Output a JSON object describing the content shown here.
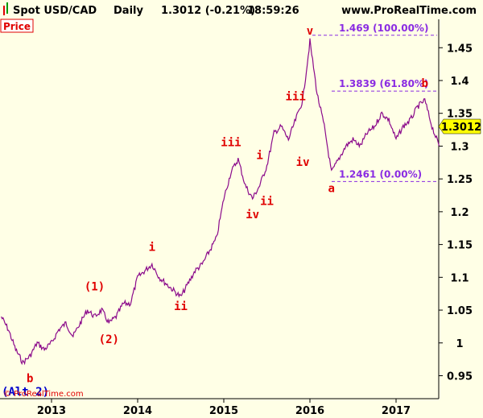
{
  "header": {
    "instrument": "Spot USD/CAD",
    "period": "Daily",
    "quote": "1.3012 (-0.21%)",
    "time": "18:59:26",
    "site": "www.ProRealTime.com"
  },
  "panel_label": "Price",
  "copyright": "© ProRealTime.com",
  "colors": {
    "background": "#ffffe6",
    "price_line": "#8b0a8b",
    "wave_label": "#e00000",
    "fib": "#8a2be2",
    "alt_label": "#0000cc",
    "last_price_box": "#ffff00"
  },
  "chart_data": {
    "type": "line",
    "title": "Spot USD/CAD Daily",
    "xlabel": "",
    "ylabel": "",
    "x_ticks": [
      "2013",
      "2014",
      "2015",
      "2016",
      "2017"
    ],
    "y_ticks": [
      "0.95",
      "1",
      "1.05",
      "1.1",
      "1.15",
      "1.2",
      "1.25",
      "1.3",
      "1.35",
      "1.4",
      "1.45"
    ],
    "ylim": [
      0.91,
      1.49
    ],
    "xlim": [
      "2012-06",
      "2017-07"
    ],
    "grid": false,
    "last_price": "1.3012",
    "series": [
      {
        "x": [
          "2012-06",
          "2012-07",
          "2012-08",
          "2012-09",
          "2012-10",
          "2012-11",
          "2012-12",
          "2013-01",
          "2013-02",
          "2013-03",
          "2013-04",
          "2013-05",
          "2013-06",
          "2013-07",
          "2013-08",
          "2013-09",
          "2013-10",
          "2013-11",
          "2013-12",
          "2014-01",
          "2014-02",
          "2014-03",
          "2014-04",
          "2014-05",
          "2014-06",
          "2014-07",
          "2014-08",
          "2014-09",
          "2014-10",
          "2014-11",
          "2014-12",
          "2015-01",
          "2015-02",
          "2015-03",
          "2015-04",
          "2015-05",
          "2015-06",
          "2015-07",
          "2015-08",
          "2015-09",
          "2015-10",
          "2015-11",
          "2015-12",
          "2016-01",
          "2016-02",
          "2016-03",
          "2016-04",
          "2016-05",
          "2016-06",
          "2016-07",
          "2016-08",
          "2016-09",
          "2016-10",
          "2016-11",
          "2016-12",
          "2017-01",
          "2017-02",
          "2017-03",
          "2017-04",
          "2017-05",
          "2017-06",
          "2017-07"
        ],
        "values": [
          1.04,
          1.02,
          0.99,
          0.97,
          0.98,
          1.0,
          0.99,
          1.0,
          1.02,
          1.03,
          1.01,
          1.03,
          1.05,
          1.04,
          1.05,
          1.03,
          1.04,
          1.06,
          1.06,
          1.1,
          1.11,
          1.12,
          1.1,
          1.09,
          1.08,
          1.07,
          1.09,
          1.11,
          1.12,
          1.14,
          1.16,
          1.22,
          1.26,
          1.28,
          1.24,
          1.22,
          1.24,
          1.27,
          1.32,
          1.33,
          1.31,
          1.34,
          1.37,
          1.46,
          1.38,
          1.33,
          1.26,
          1.28,
          1.3,
          1.31,
          1.3,
          1.32,
          1.33,
          1.35,
          1.34,
          1.31,
          1.33,
          1.34,
          1.36,
          1.37,
          1.33,
          1.3
        ]
      }
    ],
    "fib_levels": [
      {
        "value": 1.469,
        "label": "1.469 (100.00%)"
      },
      {
        "value": 1.3839,
        "label": "1.3839 (61.80%)"
      },
      {
        "value": 1.2461,
        "label": "1.2461 (0.00%)"
      }
    ],
    "wave_labels": [
      {
        "text": "b",
        "x": "2012-10",
        "y": 0.94,
        "color": "red"
      },
      {
        "text": "(Alt 2)",
        "x": "2012-07",
        "y": 0.92,
        "color": "blue"
      },
      {
        "text": "(1)",
        "x": "2013-07",
        "y": 1.08,
        "color": "red"
      },
      {
        "text": "(2)",
        "x": "2013-09",
        "y": 1.0,
        "color": "red"
      },
      {
        "text": "i",
        "x": "2014-03",
        "y": 1.14,
        "color": "red"
      },
      {
        "text": "ii",
        "x": "2014-07",
        "y": 1.05,
        "color": "red"
      },
      {
        "text": "iii",
        "x": "2015-02",
        "y": 1.3,
        "color": "red"
      },
      {
        "text": "iv",
        "x": "2015-05",
        "y": 1.19,
        "color": "red"
      },
      {
        "text": "i",
        "x": "2015-06",
        "y": 1.28,
        "color": "red"
      },
      {
        "text": "ii",
        "x": "2015-07",
        "y": 1.21,
        "color": "red"
      },
      {
        "text": "iii",
        "x": "2015-11",
        "y": 1.37,
        "color": "red"
      },
      {
        "text": "iv",
        "x": "2015-12",
        "y": 1.27,
        "color": "red"
      },
      {
        "text": "v",
        "x": "2016-01",
        "y": 1.47,
        "color": "red"
      },
      {
        "text": "a",
        "x": "2016-04",
        "y": 1.23,
        "color": "red"
      },
      {
        "text": "b",
        "x": "2017-05",
        "y": 1.39,
        "color": "red"
      }
    ]
  }
}
